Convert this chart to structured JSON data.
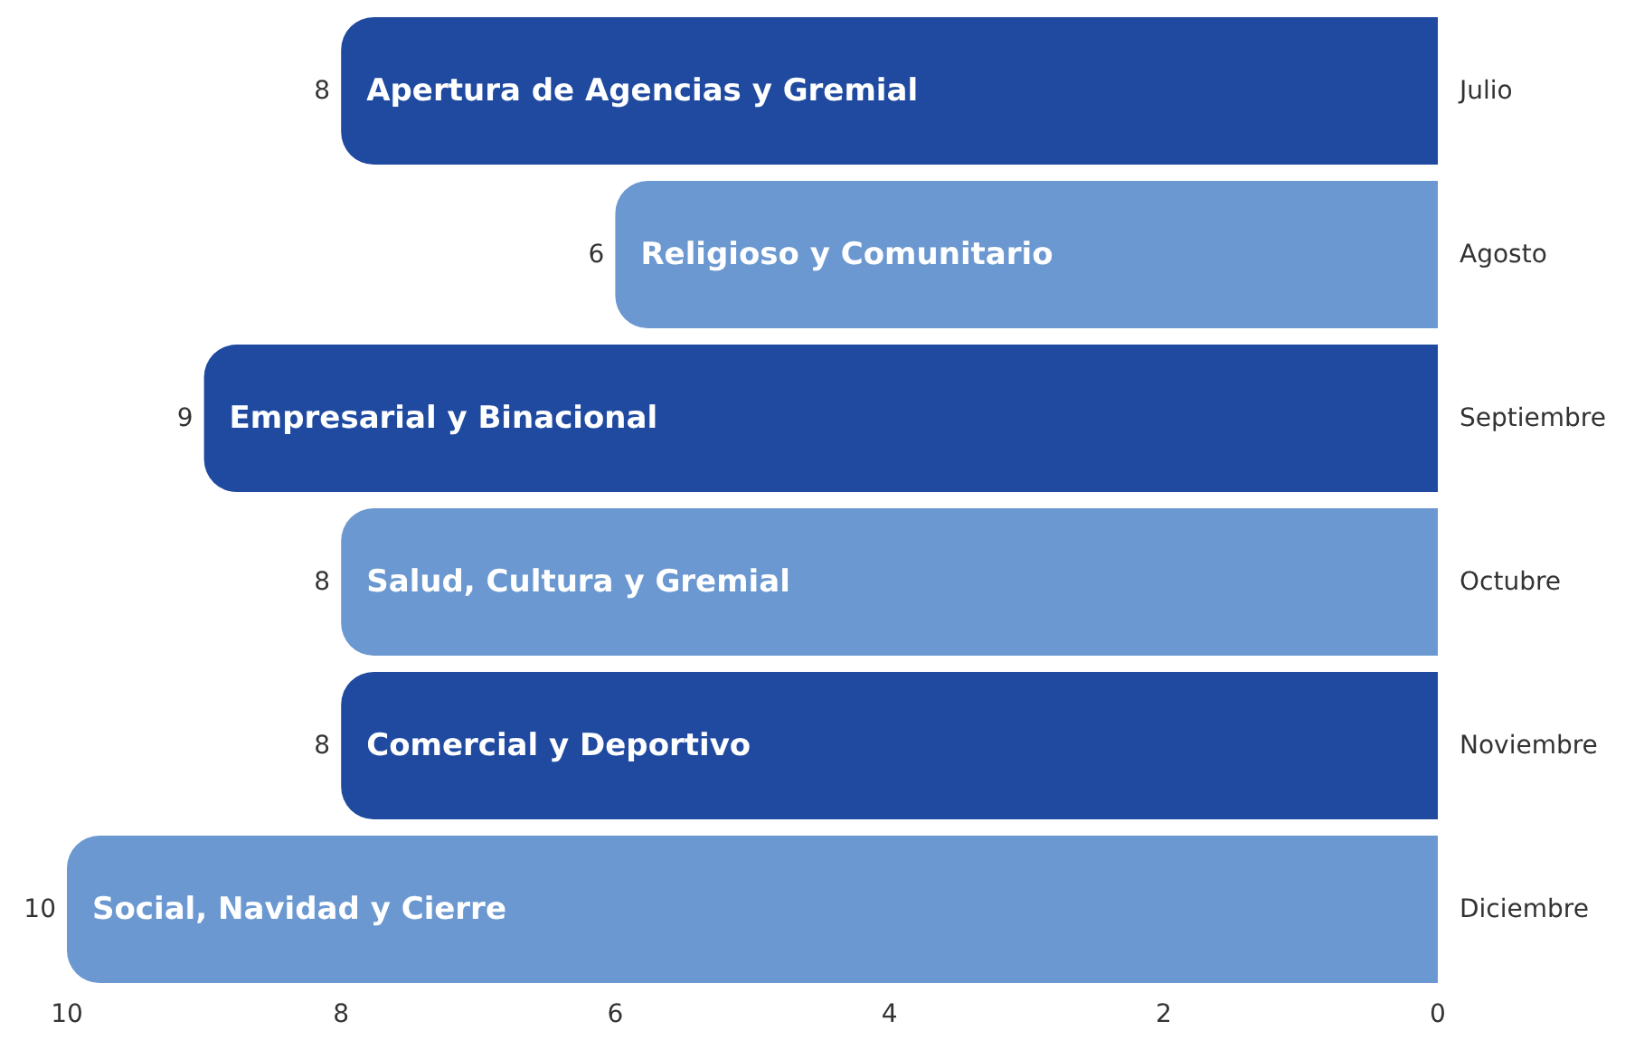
{
  "chart_data": {
    "type": "bar",
    "orientation": "horizontal",
    "categories": [
      "Julio",
      "Agosto",
      "Septiembre",
      "Octubre",
      "Noviembre",
      "Diciembre"
    ],
    "values": [
      8,
      6,
      9,
      8,
      8,
      10
    ],
    "colors": [
      "#1f4aa0",
      "#6b98d0",
      "#1f4aa0",
      "#6b98d0",
      "#1f4aa0",
      "#6b98d0"
    ],
    "xlim": [
      10,
      0
    ],
    "xticks": [
      10,
      8,
      6,
      4,
      2,
      0
    ],
    "data_labels": true,
    "grid": false,
    "annotations": [
      {
        "text": "Apertura de Agencias y Gremial",
        "x": 8,
        "y": "Julio"
      },
      {
        "text": "Religioso y Comunitario",
        "x": 6,
        "y": "Agosto"
      },
      {
        "text": "Empresarial y Binacional",
        "x": 9,
        "y": "Septiembre"
      },
      {
        "text": "Salud, Cultura y Gremial",
        "x": 8,
        "y": "Octubre"
      },
      {
        "text": "Comercial y Deportivo",
        "x": 8,
        "y": "Noviembre"
      },
      {
        "text": "Social, Navidad y Cierre",
        "x": 10,
        "y": "Diciembre"
      }
    ]
  }
}
